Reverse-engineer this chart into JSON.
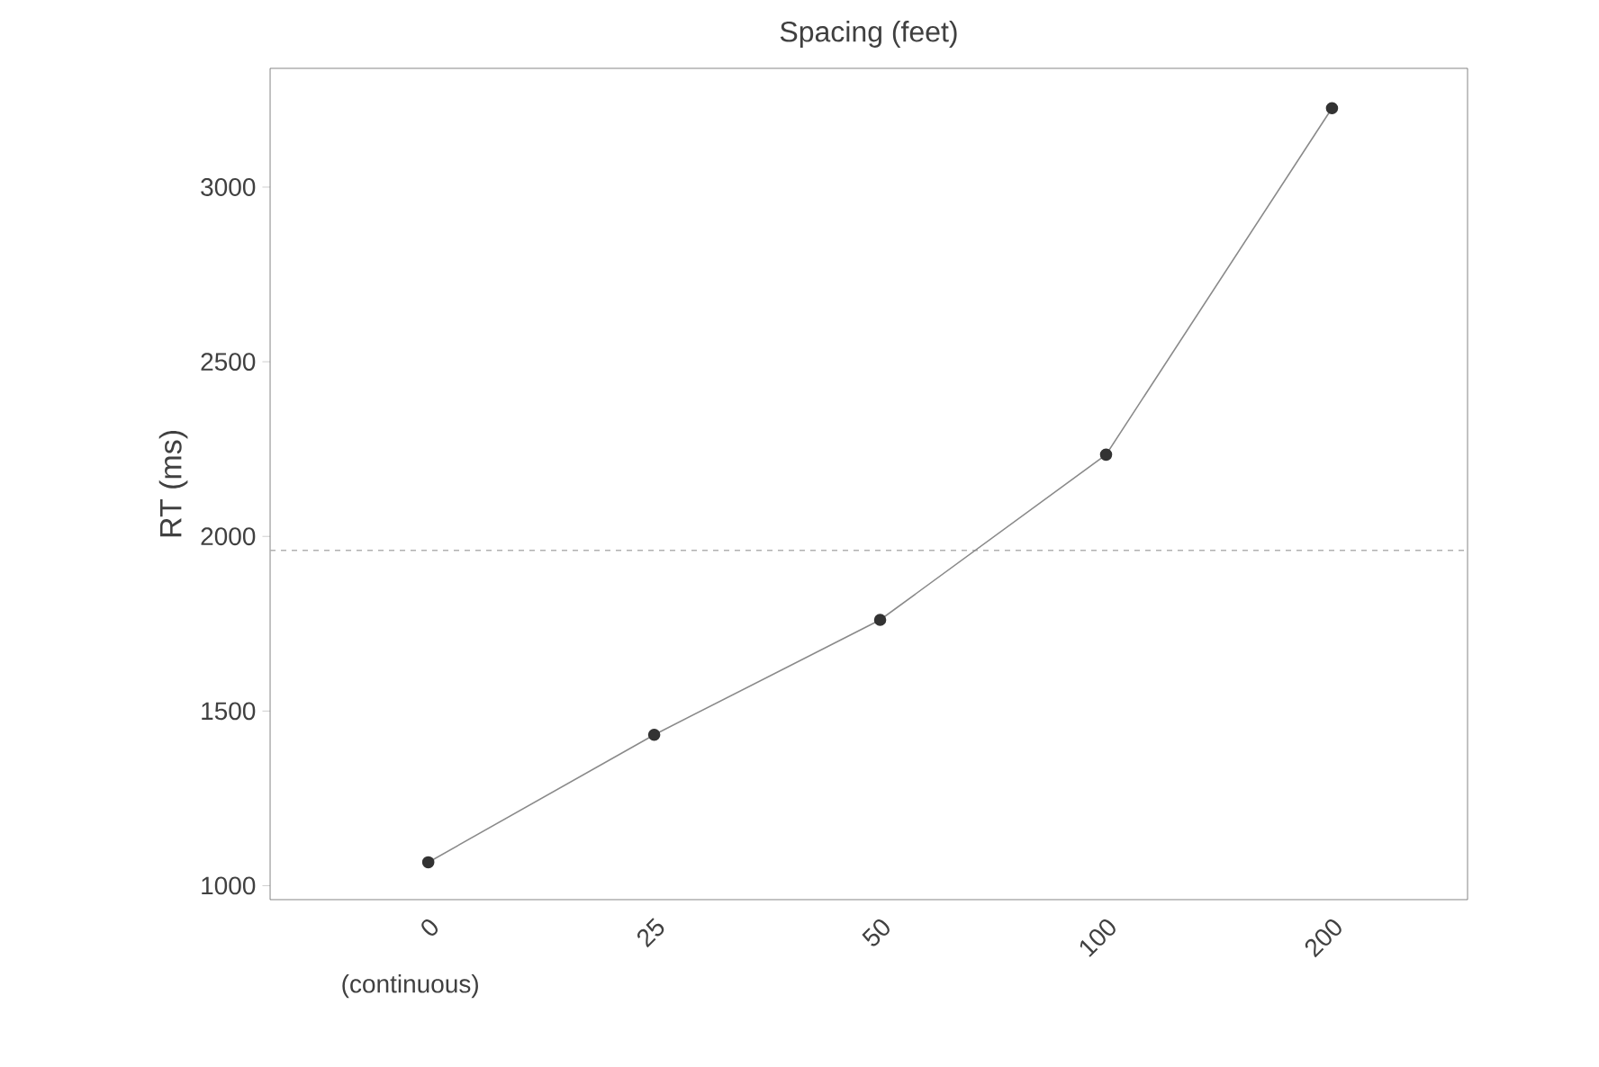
{
  "chart_data": {
    "type": "line",
    "title": "Spacing (feet)",
    "ylabel": "RT (ms)",
    "categories": [
      "0",
      "25",
      "50",
      "100",
      "200"
    ],
    "series": [
      {
        "color": "#8a8a8a",
        "values": [
          1067,
          1432,
          1761,
          2234,
          3226
        ]
      }
    ],
    "ylim": [
      960,
      3340
    ],
    "yticks": [
      1000,
      1500,
      2000,
      2500,
      3000
    ],
    "ref_lines": [
      {
        "axis": "y",
        "value": 1960,
        "color": "#b0b0b0",
        "line_style": "dashed"
      }
    ],
    "annotations": [
      "(continuous)"
    ],
    "marker": "circle",
    "line_style": "solid"
  }
}
